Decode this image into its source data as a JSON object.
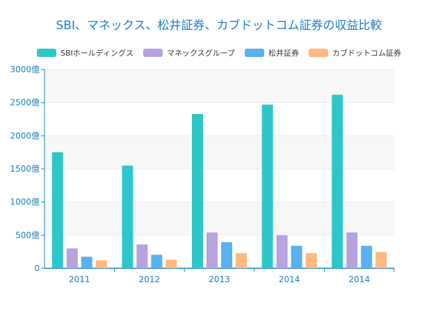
{
  "chart_data": {
    "type": "bar",
    "title": "SBI、マネックス、松井証券、カブドットコム証券の収益比較",
    "categories": [
      "2011",
      "2012",
      "2013",
      "2014",
      "2014"
    ],
    "series": [
      {
        "name": "SBIホールディングス",
        "color": "#2ec7c9",
        "values": [
          1750,
          1550,
          2330,
          2470,
          2620
        ]
      },
      {
        "name": "マネックスグループ",
        "color": "#b6a2de",
        "values": [
          300,
          360,
          540,
          500,
          540
        ]
      },
      {
        "name": "松井証券",
        "color": "#5ab1ef",
        "values": [
          175,
          205,
          395,
          340,
          340
        ]
      },
      {
        "name": "カブドットコム証券",
        "color": "#ffb980",
        "values": [
          120,
          130,
          230,
          230,
          245
        ]
      }
    ],
    "y_ticks": [
      "0",
      "500億",
      "1000億",
      "1500億",
      "2000億",
      "2500億",
      "3000億"
    ],
    "ylim": [
      0,
      3000
    ],
    "xlabel": "",
    "ylabel": "",
    "grid": true,
    "legend_position": "top-center"
  }
}
